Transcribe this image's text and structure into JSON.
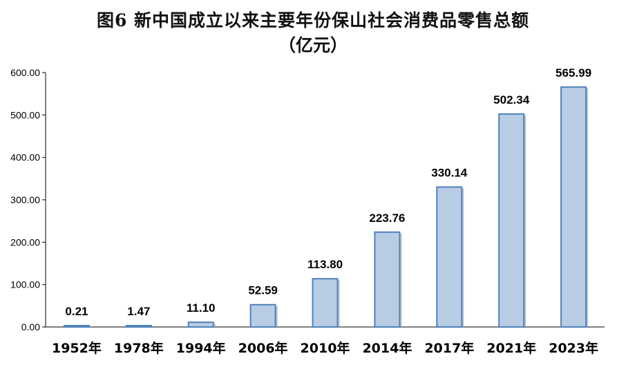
{
  "chart_data": {
    "type": "bar",
    "title": "图6   新中国成立以来主要年份保山社会消费品零售总额",
    "subtitle": "（亿元）",
    "categories": [
      "1952年",
      "1978年",
      "1994年",
      "2006年",
      "2010年",
      "2014年",
      "2017年",
      "2021年",
      "2023年"
    ],
    "values": [
      0.21,
      1.47,
      11.1,
      52.59,
      113.8,
      223.76,
      330.14,
      502.34,
      565.99
    ],
    "data_labels": [
      "0.21",
      "1.47",
      "11.10",
      "52.59",
      "113.80",
      "223.76",
      "330.14",
      "502.34",
      "565.99"
    ],
    "y_ticks": [
      "0.00",
      "100.00",
      "200.00",
      "300.00",
      "400.00",
      "500.00",
      "600.00"
    ],
    "ylim": [
      0,
      600
    ],
    "grid": false,
    "legend": "none",
    "colors": {
      "bar_fill": "#b8cce4",
      "bar_edge": "#4f81bd",
      "bar_shadow": "#7f8fa6",
      "axis": "#000000"
    }
  }
}
